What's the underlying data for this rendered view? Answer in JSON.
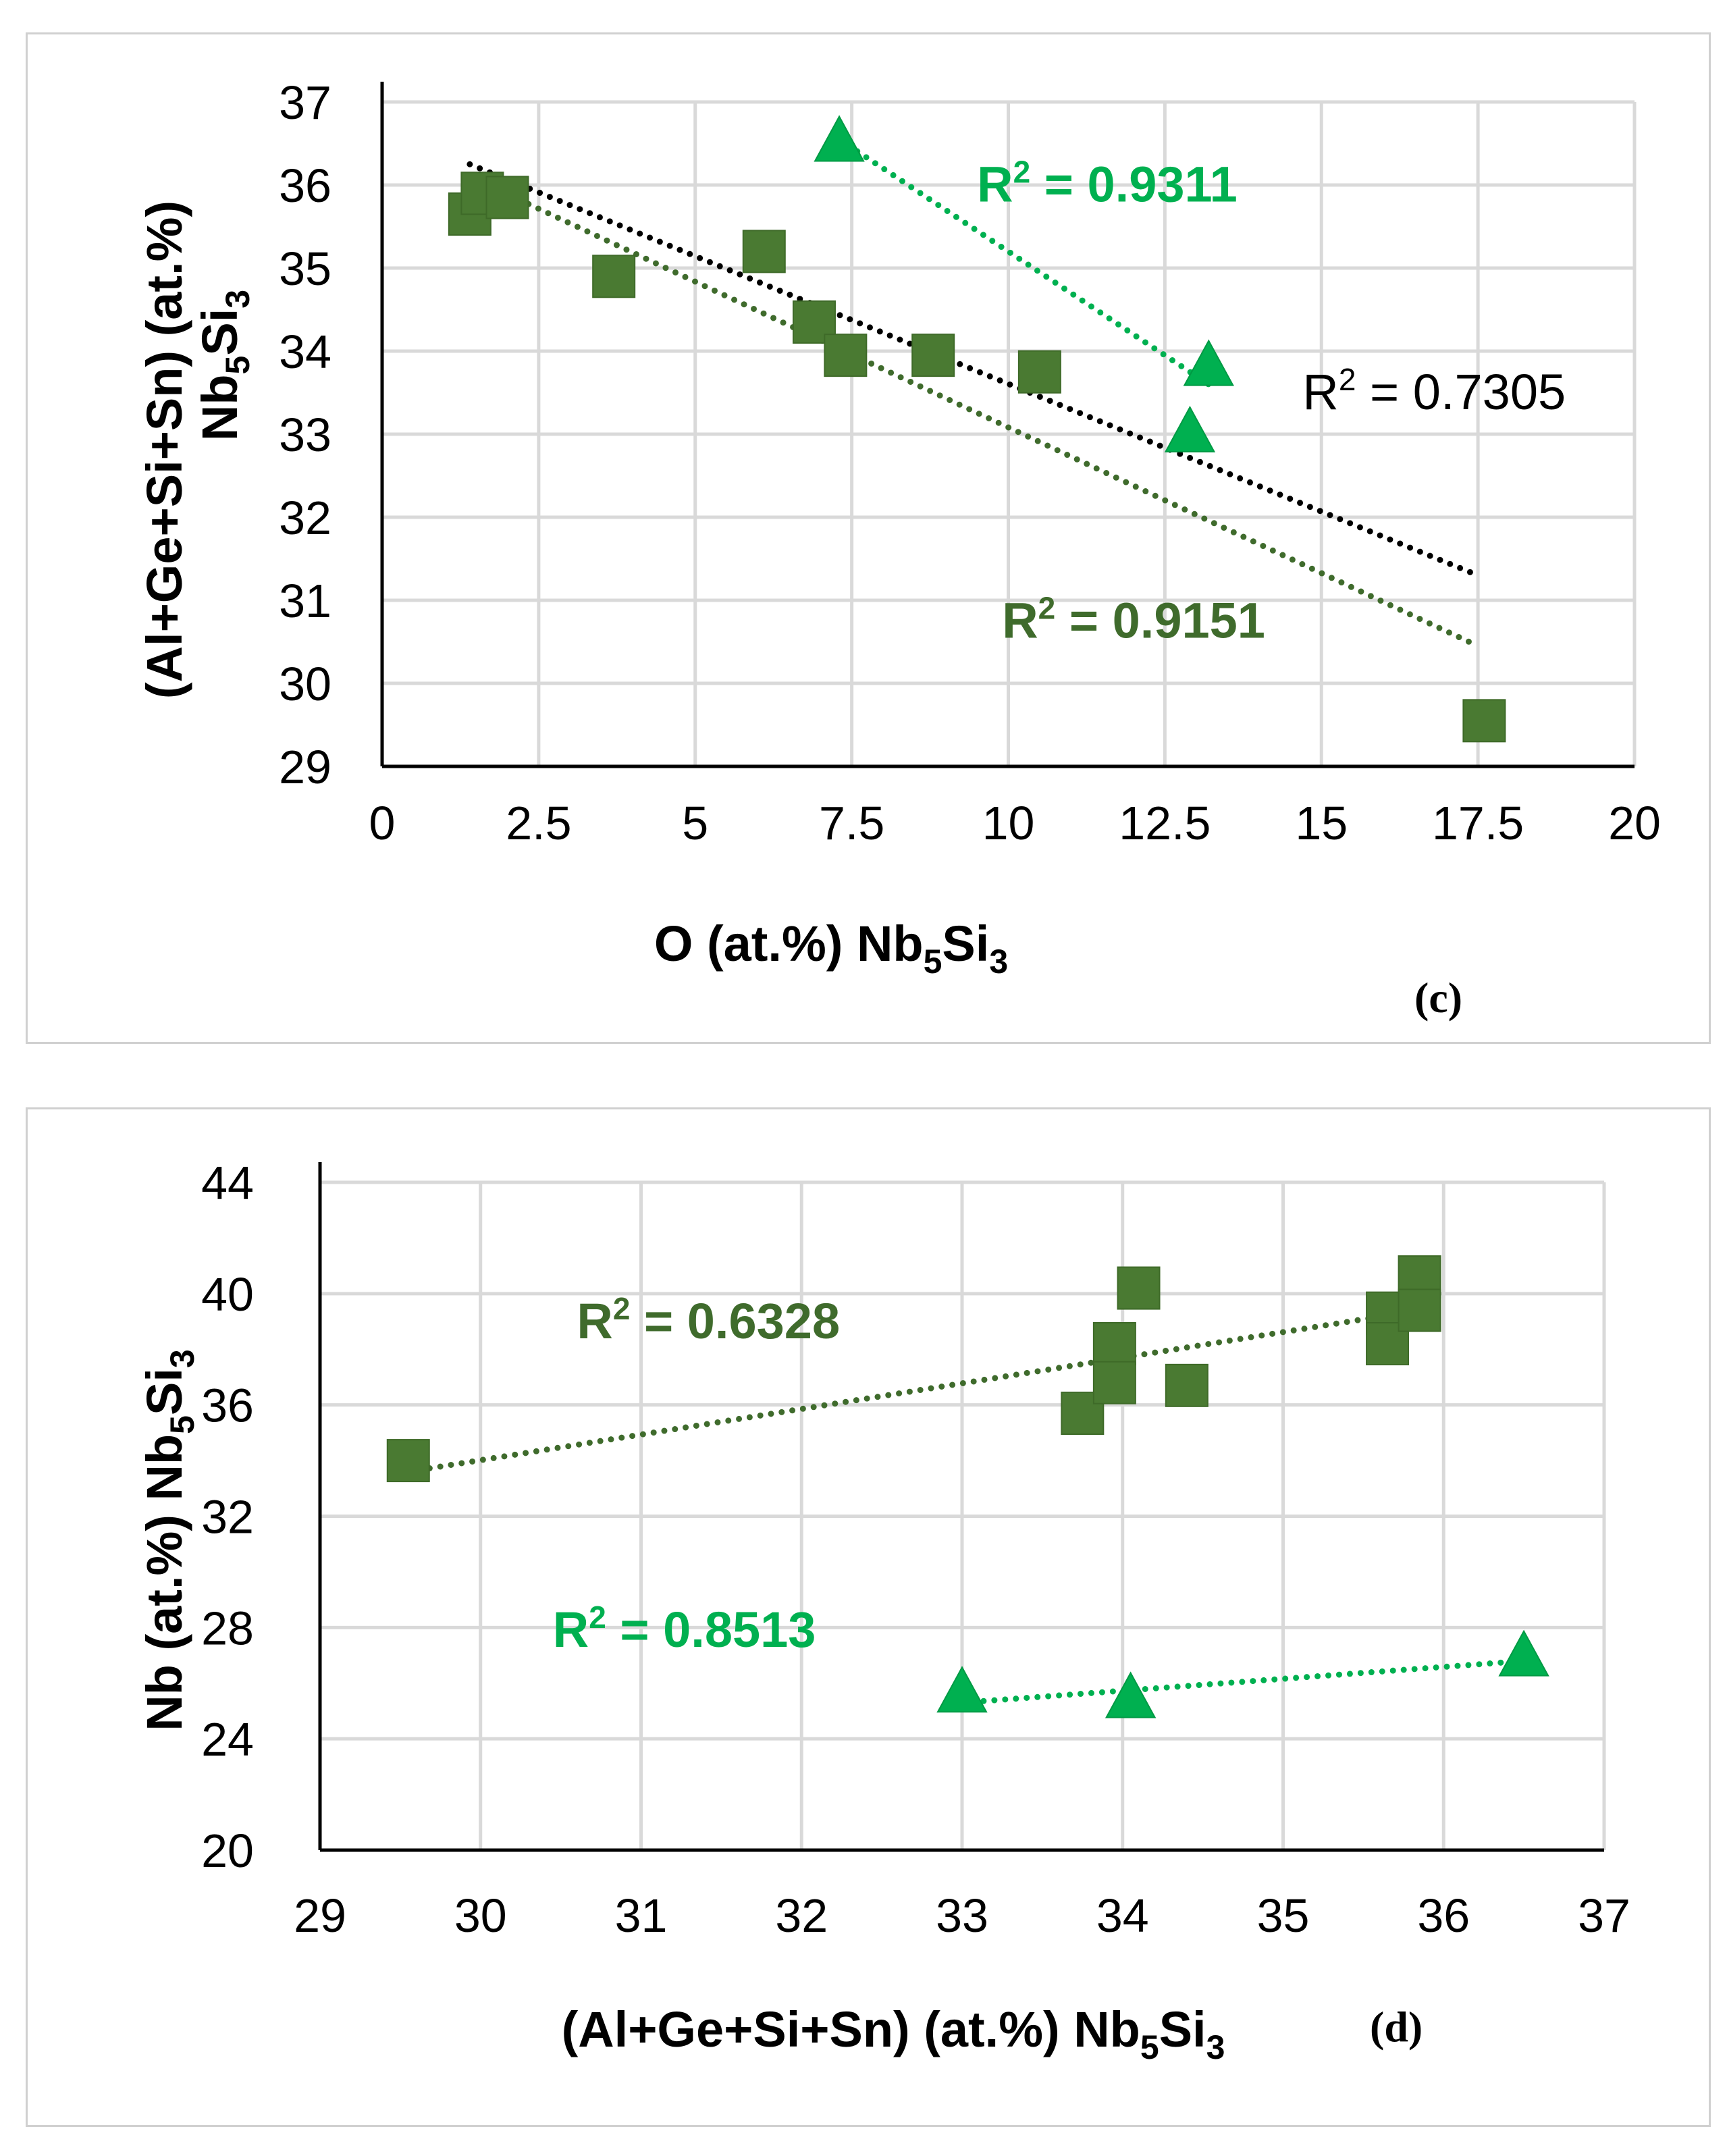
{
  "colors": {
    "dark_green": "#4a7a32",
    "light_green": "#00b050",
    "trend_black": "#000000",
    "trend_dark": "#3f6b2c",
    "trend_light": "#00b050"
  },
  "chart_data": [
    {
      "type": "scatter",
      "panel_label": "(c)",
      "title": "",
      "xlabel": {
        "prefix": "O (at.%) Nb",
        "sub1": "5",
        "mid": "Si",
        "sub2": "3"
      },
      "ylabel": {
        "line1": "(Al+Ge+Si+Sn) (at.%)",
        "prefix": "Nb",
        "sub1": "5",
        "mid": "Si",
        "sub2": "3"
      },
      "xlim": [
        0,
        20
      ],
      "ylim": [
        29,
        37
      ],
      "xticks": [
        0,
        2.5,
        5,
        7.5,
        10,
        12.5,
        15,
        17.5,
        20
      ],
      "xtick_labels": [
        "0",
        "2.5",
        "5",
        "7.5",
        "10",
        "12.5",
        "15",
        "17.5",
        "20"
      ],
      "yticks": [
        29,
        30,
        31,
        32,
        33,
        34,
        35,
        36,
        37
      ],
      "ytick_labels": [
        "29",
        "30",
        "31",
        "32",
        "33",
        "34",
        "35",
        "36",
        "37"
      ],
      "series": [
        {
          "name": "squares",
          "marker": "square",
          "color": "#4a7a32",
          "x": [
            1.4,
            1.6,
            2.0,
            3.7,
            6.1,
            6.9,
            7.4,
            8.8,
            10.5,
            17.6
          ],
          "y": [
            35.65,
            35.9,
            35.85,
            34.9,
            35.2,
            34.35,
            33.95,
            33.95,
            33.75,
            29.55
          ]
        },
        {
          "name": "triangles",
          "marker": "triangle",
          "color": "#00b050",
          "x": [
            7.3,
            12.9,
            13.2
          ],
          "y": [
            36.5,
            33.0,
            33.8
          ]
        }
      ],
      "trendlines": [
        {
          "color": "#000000",
          "x": [
            1.4,
            17.5
          ],
          "y": [
            36.25,
            31.3
          ]
        },
        {
          "color": "#3f6b2c",
          "x": [
            1.4,
            17.5
          ],
          "y": [
            36.1,
            30.45
          ]
        },
        {
          "color": "#00b050",
          "x": [
            7.3,
            13.2
          ],
          "y": [
            36.55,
            33.6
          ]
        }
      ],
      "annotations": [
        {
          "label": "R",
          "sup": "2",
          "rest": " = 0.9311",
          "color": "#00b050",
          "bold": true,
          "x": 9.5,
          "y": 35.8
        },
        {
          "label": "R",
          "sup": "2",
          "rest": " = 0.7305",
          "color": "#000000",
          "bold": false,
          "x": 14.7,
          "y": 33.3
        },
        {
          "label": "R",
          "sup": "2",
          "rest": " = 0.9151",
          "color": "#3f6b2c",
          "bold": true,
          "x": 9.9,
          "y": 30.55
        }
      ]
    },
    {
      "type": "scatter",
      "panel_label": "(d)",
      "title": "",
      "xlabel": {
        "prefix": "(Al+Ge+Si+Sn) (at.%) Nb",
        "sub1": "5",
        "mid": "Si",
        "sub2": "3"
      },
      "ylabel": {
        "line1": "",
        "prefix": "Nb (at.%) Nb",
        "sub1": "5",
        "mid": "Si",
        "sub2": "3"
      },
      "xlim": [
        29,
        37
      ],
      "ylim": [
        20,
        44
      ],
      "xticks": [
        29,
        30,
        31,
        32,
        33,
        34,
        35,
        36,
        37
      ],
      "xtick_labels": [
        "29",
        "30",
        "31",
        "32",
        "33",
        "34",
        "35",
        "36",
        "37"
      ],
      "yticks": [
        20,
        24,
        28,
        32,
        36,
        40,
        44
      ],
      "ytick_labels": [
        "20",
        "24",
        "28",
        "32",
        "36",
        "40",
        "44"
      ],
      "series": [
        {
          "name": "squares",
          "marker": "square",
          "color": "#4a7a32",
          "x": [
            29.55,
            33.75,
            33.95,
            33.95,
            34.1,
            34.4,
            35.65,
            35.65,
            35.85,
            35.85
          ],
          "y": [
            34.0,
            35.7,
            38.2,
            36.8,
            40.2,
            36.7,
            39.3,
            38.2,
            40.6,
            39.4
          ]
        },
        {
          "name": "triangles",
          "marker": "triangle",
          "color": "#00b050",
          "x": [
            33.0,
            34.05,
            36.5
          ],
          "y": [
            25.6,
            25.4,
            26.9
          ]
        }
      ],
      "trendlines": [
        {
          "color": "#3f6b2c",
          "x": [
            29.55,
            35.85
          ],
          "y": [
            33.6,
            39.4
          ]
        },
        {
          "color": "#00b050",
          "x": [
            33.0,
            36.5
          ],
          "y": [
            25.3,
            26.8
          ]
        }
      ],
      "annotations": [
        {
          "label": "R",
          "sup": "2",
          "rest": " = 0.6328",
          "color": "#3f6b2c",
          "bold": true,
          "x": 30.6,
          "y": 38.4
        },
        {
          "label": "R",
          "sup": "2",
          "rest": " = 0.8513",
          "color": "#00b050",
          "bold": true,
          "x": 30.45,
          "y": 27.3
        }
      ]
    }
  ]
}
